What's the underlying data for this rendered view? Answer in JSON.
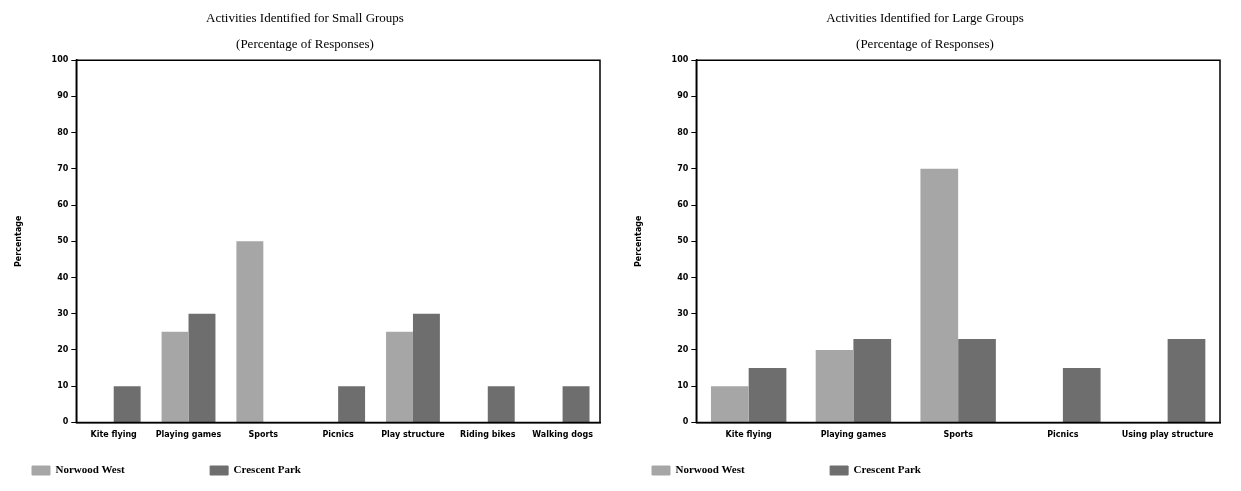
{
  "chart_data": [
    {
      "type": "bar",
      "title": "Activities Identified for Small Groups",
      "subtitle": "(Percentage of Responses)",
      "ylabel": "Percentage",
      "categories": [
        "Kite flying",
        "Playing games",
        "Sports",
        "Picnics",
        "Play structure",
        "Riding bikes",
        "Walking dogs"
      ],
      "series": [
        {
          "name": "Norwood West",
          "color": "#a6a6a6",
          "values": [
            null,
            25,
            50,
            null,
            25,
            null,
            null
          ]
        },
        {
          "name": "Crescent Park",
          "color": "#6e6e6e",
          "values": [
            10,
            30,
            null,
            10,
            30,
            10,
            10
          ]
        }
      ],
      "ylim": [
        0,
        100
      ],
      "yticks": [
        0,
        10,
        20,
        30,
        40,
        50,
        60,
        70,
        80,
        90,
        100
      ],
      "grid": false,
      "legend": "bottom"
    },
    {
      "type": "bar",
      "title": "Activities Identified for Large Groups",
      "subtitle": "(Percentage of Responses)",
      "ylabel": "Percentage",
      "categories": [
        "Kite flying",
        "Playing games",
        "Sports",
        "Picnics",
        "Using play structure"
      ],
      "series": [
        {
          "name": "Norwood West",
          "color": "#a6a6a6",
          "values": [
            10,
            20,
            70,
            null,
            null
          ]
        },
        {
          "name": "Crescent Park",
          "color": "#6e6e6e",
          "values": [
            15,
            23,
            23,
            15,
            23
          ]
        }
      ],
      "ylim": [
        0,
        100
      ],
      "yticks": [
        0,
        10,
        20,
        30,
        40,
        50,
        60,
        70,
        80,
        90,
        100
      ],
      "grid": false,
      "legend": "bottom"
    }
  ]
}
